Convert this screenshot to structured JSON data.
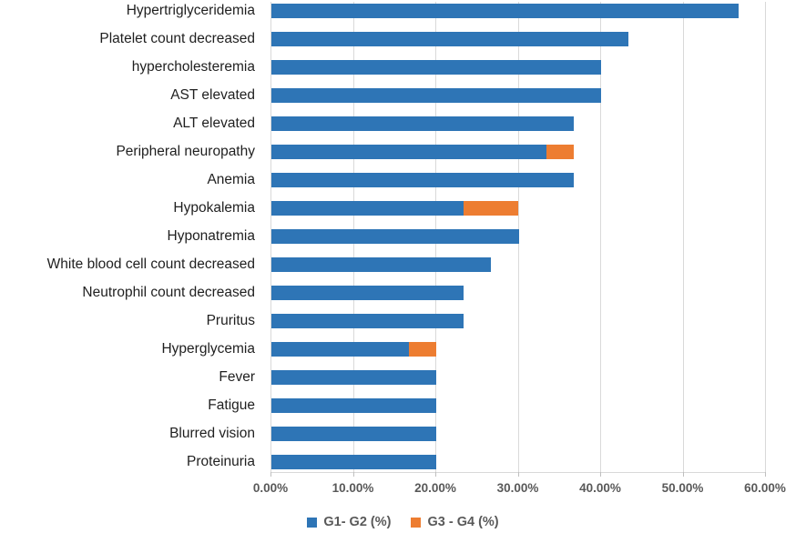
{
  "colors": {
    "series_blue": "#2E75B6",
    "series_orange": "#ED7D31",
    "gridline": "#D9D9D9",
    "axis_text": "#595959",
    "category_text": "#1f1f1f"
  },
  "chart_data": {
    "type": "bar",
    "orientation": "horizontal",
    "stacked": true,
    "title": "",
    "xlabel": "",
    "ylabel": "",
    "grid": true,
    "legend_position": "bottom",
    "categories": [
      "Hypertriglyceridemia",
      "Platelet count decreased",
      "hypercholesteremia",
      "AST elevated",
      "ALT elevated",
      "Peripheral neuropathy",
      "Anemia",
      "Hypokalemia",
      "Hyponatremia",
      "White blood cell count decreased",
      "Neutrophil count decreased",
      "Pruritus",
      "Hyperglycemia",
      "Fever",
      "Fatigue",
      "Blurred vision",
      "Proteinuria"
    ],
    "series": [
      {
        "name": "G1- G2 (%)",
        "color": "#2E75B6",
        "values": [
          56.67,
          43.33,
          40.0,
          40.0,
          36.67,
          33.33,
          36.67,
          23.33,
          30.0,
          26.67,
          23.33,
          23.33,
          16.67,
          20.0,
          20.0,
          20.0,
          20.0
        ]
      },
      {
        "name": "G3 - G4 (%)",
        "color": "#ED7D31",
        "values": [
          0,
          0,
          0,
          0,
          0,
          3.33,
          0,
          6.67,
          0,
          0,
          0,
          0,
          3.33,
          0,
          0,
          0,
          0
        ]
      }
    ],
    "x_axis": {
      "min": 0,
      "max": 60,
      "tick_labels": [
        "0.00%",
        "10.00%",
        "20.00%",
        "30.00%",
        "40.00%",
        "50.00%",
        "60.00%"
      ]
    }
  }
}
